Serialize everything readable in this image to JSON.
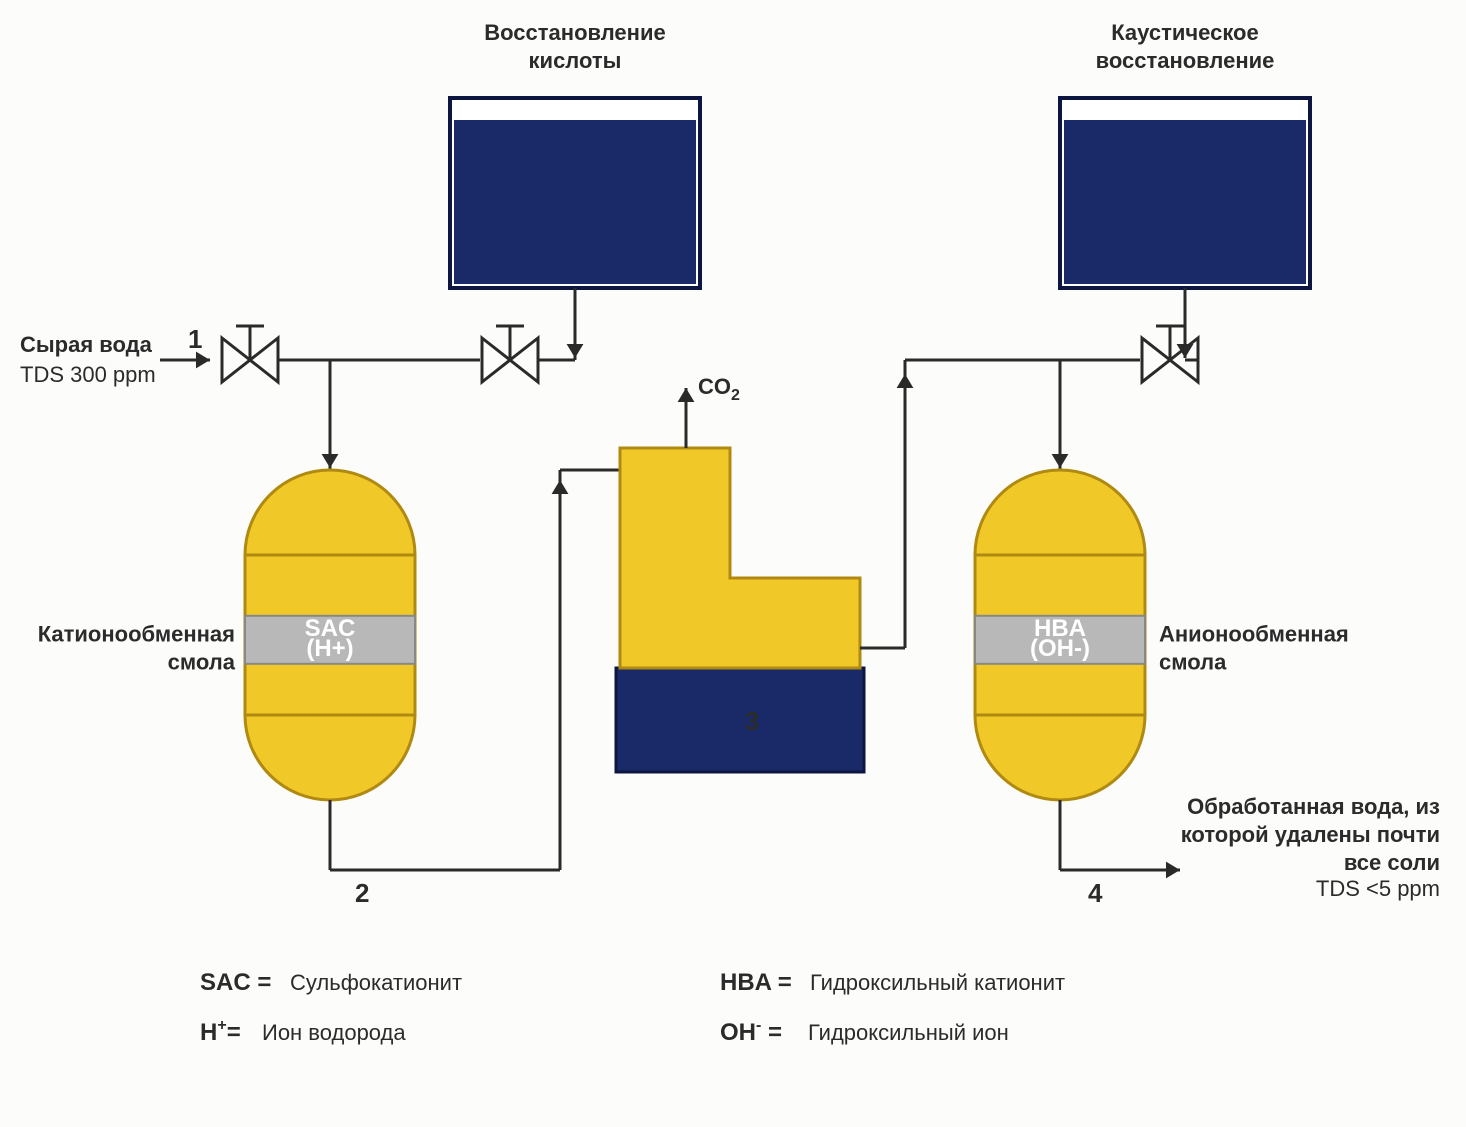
{
  "colors": {
    "stroke": "#2a2a2a",
    "tankFill": "#1a2a68",
    "tankBorder": "#0c1640",
    "vesselFill": "#f0c828",
    "vesselStroke": "#b08a10",
    "resinFill": "#b8b8b8",
    "resinStroke": "#888888",
    "degasFill": "#f0c828",
    "degasBase": "#1a2a68",
    "bg": "#fcfcfa"
  },
  "geom": {
    "pipeW": 3,
    "arrowLen": 14
  },
  "tankAcid": {
    "title1": "Восстановление",
    "title2": "кислоты"
  },
  "tankCaustic": {
    "title1": "Каустическое",
    "title2": "восстановление"
  },
  "inlet": {
    "label": "Сырая вода",
    "tds": "TDS 300 ppm",
    "num": "1"
  },
  "cation": {
    "label1": "Катионообменная",
    "label2": "смола",
    "resin1": "SAC",
    "resin2": "(H+)",
    "num": "2"
  },
  "degas": {
    "co2": "CO",
    "co2sub": "2",
    "num": "3"
  },
  "anion": {
    "label1": "Анионообменная",
    "label2": "смола",
    "resin1": "HBA",
    "resin2": "(OH-)",
    "num": "4"
  },
  "outlet": {
    "l1": "Обработанная вода, из",
    "l2": "которой удалены почти",
    "l3": "все соли",
    "tds": "TDS <5 ppm"
  },
  "legend": {
    "sac_k": "SAC =",
    "sac_v": "Сульфокатионит",
    "h_k": "H",
    "h_sup": "+",
    "h_eq": "=",
    "h_v": "Ион водорода",
    "hba_k": "HBA =",
    "hba_v": "Гидроксильный катионит",
    "oh_k": "OH",
    "oh_sup": "-",
    "oh_eq": " =",
    "oh_v": "Гидроксильный ион"
  }
}
